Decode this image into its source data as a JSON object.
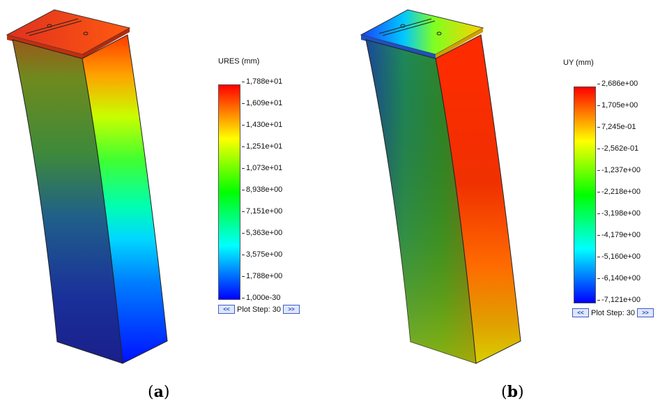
{
  "panels": [
    {
      "label_open": "(",
      "label_letter": "a",
      "label_close": ")",
      "legend": {
        "title": "URES (mm)",
        "ticks": [
          "1,788e+01",
          "1,609e+01",
          "1,430e+01",
          "1,251e+01",
          "1,073e+01",
          "8,938e+00",
          "7,151e+00",
          "5,363e+00",
          "3,575e+00",
          "1,788e+00",
          "1,000e-30"
        ]
      },
      "plot_step": {
        "prev": "<<",
        "label": "Plot Step: 30",
        "next": ">>"
      }
    },
    {
      "label_open": "(",
      "label_letter": "b",
      "label_close": ")",
      "legend": {
        "title": "UY (mm)",
        "ticks": [
          "2,686e+00",
          "1,705e+00",
          "7,245e-01",
          "-2,562e-01",
          "-1,237e+00",
          "-2,218e+00",
          "-3,198e+00",
          "-4,179e+00",
          "-5,160e+00",
          "-6,140e+00",
          "-7,121e+00"
        ]
      },
      "plot_step": {
        "prev": "<<",
        "label": "Plot Step: 30",
        "next": ">>"
      }
    }
  ],
  "colors": {
    "scale": [
      "#ff0000",
      "#ff8000",
      "#ffff00",
      "#80ff00",
      "#00ff00",
      "#00ff80",
      "#00ffff",
      "#0080ff",
      "#0000ff"
    ],
    "button_border": "#3a5ec8"
  }
}
